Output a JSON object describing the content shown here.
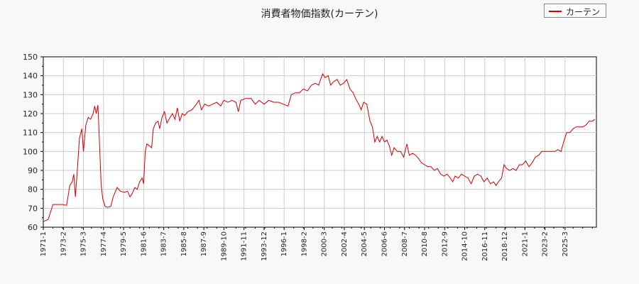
{
  "chart_data": {
    "type": "line",
    "title": "消費者物価指数(カーテン)",
    "xlabel": "",
    "ylabel": "",
    "ylim": [
      60,
      150
    ],
    "yticks": [
      60,
      70,
      80,
      90,
      100,
      110,
      120,
      130,
      140,
      150
    ],
    "grid": true,
    "legend_position": "top-right",
    "x_tick_labels": [
      "1971-1",
      "1973-2",
      "1975-3",
      "1977-4",
      "1979-5",
      "1981-6",
      "1983-7",
      "1985-8",
      "1987-9",
      "1989-10",
      "1991-11",
      "1993-12",
      "1996-1",
      "1998-2",
      "2000-3",
      "2002-4",
      "2004-5",
      "2006-6",
      "2008-7",
      "2010-8",
      "2012-9",
      "2014-10",
      "2016-11",
      "2018-12",
      "2021-1",
      "2023-2",
      "2025-3"
    ],
    "series": [
      {
        "name": "カーテン",
        "color": "#d00000",
        "points": [
          [
            "1971-01",
            63
          ],
          [
            "1971-07",
            64
          ],
          [
            "1972-01",
            72
          ],
          [
            "1972-07",
            72
          ],
          [
            "1973-01",
            72
          ],
          [
            "1973-06",
            71.5
          ],
          [
            "1973-10",
            82
          ],
          [
            "1974-01",
            84
          ],
          [
            "1974-03",
            88
          ],
          [
            "1974-05",
            76
          ],
          [
            "1974-07",
            88
          ],
          [
            "1974-10",
            107
          ],
          [
            "1975-01",
            112
          ],
          [
            "1975-03",
            100
          ],
          [
            "1975-06",
            114
          ],
          [
            "1975-09",
            118
          ],
          [
            "1975-12",
            117
          ],
          [
            "1976-03",
            120
          ],
          [
            "1976-05",
            124
          ],
          [
            "1976-07",
            120
          ],
          [
            "1976-09",
            124.5
          ],
          [
            "1976-11",
            105
          ],
          [
            "1977-01",
            83
          ],
          [
            "1977-03",
            75
          ],
          [
            "1977-06",
            71
          ],
          [
            "1977-09",
            70.5
          ],
          [
            "1978-01",
            71
          ],
          [
            "1978-04",
            76
          ],
          [
            "1978-07",
            79
          ],
          [
            "1978-09",
            81
          ],
          [
            "1979-01",
            79
          ],
          [
            "1979-06",
            78.5
          ],
          [
            "1979-10",
            79
          ],
          [
            "1980-01",
            76
          ],
          [
            "1980-04",
            78
          ],
          [
            "1980-07",
            81
          ],
          [
            "1980-10",
            80
          ],
          [
            "1981-01",
            84
          ],
          [
            "1981-04",
            86
          ],
          [
            "1981-06",
            83
          ],
          [
            "1981-08",
            100
          ],
          [
            "1981-10",
            104
          ],
          [
            "1982-01",
            103
          ],
          [
            "1982-04",
            102
          ],
          [
            "1982-06",
            112
          ],
          [
            "1982-09",
            115
          ],
          [
            "1982-12",
            116
          ],
          [
            "1983-02",
            112
          ],
          [
            "1983-05",
            118
          ],
          [
            "1983-08",
            121
          ],
          [
            "1983-11",
            115
          ],
          [
            "1984-03",
            118
          ],
          [
            "1984-06",
            120
          ],
          [
            "1984-09",
            117
          ],
          [
            "1984-12",
            123
          ],
          [
            "1985-03",
            116
          ],
          [
            "1985-06",
            120
          ],
          [
            "1985-09",
            119
          ],
          [
            "1986-01",
            121
          ],
          [
            "1986-06",
            122
          ],
          [
            "1986-10",
            124
          ],
          [
            "1987-03",
            127
          ],
          [
            "1987-06",
            122
          ],
          [
            "1987-10",
            125
          ],
          [
            "1988-03",
            124
          ],
          [
            "1988-08",
            125
          ],
          [
            "1989-01",
            126
          ],
          [
            "1989-06",
            124
          ],
          [
            "1989-10",
            127
          ],
          [
            "1990-03",
            126
          ],
          [
            "1990-08",
            127
          ],
          [
            "1991-01",
            126
          ],
          [
            "1991-04",
            121
          ],
          [
            "1991-07",
            127
          ],
          [
            "1992-01",
            128
          ],
          [
            "1992-08",
            128
          ],
          [
            "1993-01",
            125
          ],
          [
            "1993-06",
            127
          ],
          [
            "1993-12",
            125
          ],
          [
            "1994-06",
            127
          ],
          [
            "1994-12",
            126
          ],
          [
            "1995-06",
            126
          ],
          [
            "1995-12",
            125
          ],
          [
            "1996-06",
            124
          ],
          [
            "1996-10",
            130
          ],
          [
            "1997-03",
            131
          ],
          [
            "1997-08",
            131
          ],
          [
            "1998-01",
            133
          ],
          [
            "1998-06",
            132
          ],
          [
            "1998-11",
            135
          ],
          [
            "1999-04",
            136
          ],
          [
            "1999-08",
            135
          ],
          [
            "2000-01",
            141
          ],
          [
            "2000-04",
            139
          ],
          [
            "2000-08",
            140
          ],
          [
            "2000-11",
            135
          ],
          [
            "2001-03",
            137
          ],
          [
            "2001-07",
            138
          ],
          [
            "2001-11",
            135
          ],
          [
            "2002-03",
            136
          ],
          [
            "2002-07",
            138
          ],
          [
            "2002-11",
            133
          ],
          [
            "2003-03",
            131
          ],
          [
            "2003-06",
            128
          ],
          [
            "2003-10",
            125
          ],
          [
            "2004-01",
            122
          ],
          [
            "2004-04",
            126
          ],
          [
            "2004-08",
            125
          ],
          [
            "2004-12",
            116
          ],
          [
            "2005-03",
            113
          ],
          [
            "2005-06",
            105
          ],
          [
            "2005-09",
            108
          ],
          [
            "2005-12",
            105
          ],
          [
            "2006-03",
            108
          ],
          [
            "2006-06",
            105
          ],
          [
            "2006-09",
            106
          ],
          [
            "2006-12",
            103
          ],
          [
            "2007-03",
            98
          ],
          [
            "2007-06",
            102
          ],
          [
            "2007-10",
            100
          ],
          [
            "2008-02",
            100
          ],
          [
            "2008-06",
            97
          ],
          [
            "2008-10",
            104
          ],
          [
            "2009-01",
            98
          ],
          [
            "2009-05",
            99
          ],
          [
            "2009-09",
            98
          ],
          [
            "2010-01",
            96
          ],
          [
            "2010-04",
            94
          ],
          [
            "2010-08",
            93
          ],
          [
            "2010-12",
            92
          ],
          [
            "2011-04",
            92
          ],
          [
            "2011-08",
            90
          ],
          [
            "2011-12",
            91
          ],
          [
            "2012-04",
            88
          ],
          [
            "2012-08",
            87
          ],
          [
            "2012-12",
            88
          ],
          [
            "2013-04",
            86
          ],
          [
            "2013-07",
            84
          ],
          [
            "2013-10",
            87
          ],
          [
            "2014-02",
            86
          ],
          [
            "2014-06",
            88
          ],
          [
            "2014-10",
            87
          ],
          [
            "2015-02",
            86
          ],
          [
            "2015-06",
            83
          ],
          [
            "2015-10",
            87
          ],
          [
            "2016-02",
            88
          ],
          [
            "2016-06",
            87
          ],
          [
            "2016-10",
            84
          ],
          [
            "2017-02",
            86
          ],
          [
            "2017-06",
            83
          ],
          [
            "2017-10",
            84
          ],
          [
            "2018-01",
            82
          ],
          [
            "2018-04",
            84
          ],
          [
            "2018-08",
            86
          ],
          [
            "2018-11",
            93
          ],
          [
            "2019-02",
            91
          ],
          [
            "2019-06",
            90
          ],
          [
            "2019-10",
            91
          ],
          [
            "2020-02",
            90
          ],
          [
            "2020-06",
            93
          ],
          [
            "2020-10",
            93
          ],
          [
            "2021-02",
            95
          ],
          [
            "2021-06",
            92
          ],
          [
            "2021-10",
            94
          ],
          [
            "2022-02",
            97
          ],
          [
            "2022-06",
            98
          ],
          [
            "2022-10",
            100
          ],
          [
            "2023-02",
            100
          ],
          [
            "2023-06",
            100
          ],
          [
            "2023-10",
            100
          ],
          [
            "2024-02",
            100
          ],
          [
            "2024-06",
            101
          ],
          [
            "2024-10",
            100
          ],
          [
            "2025-02",
            106
          ],
          [
            "2025-05",
            110
          ],
          [
            "2025-09",
            110
          ],
          [
            "2026-01",
            112
          ],
          [
            "2026-05",
            113
          ],
          [
            "2026-09",
            113
          ],
          [
            "2027-01",
            113
          ],
          [
            "2027-05",
            114
          ],
          [
            "2027-09",
            116
          ],
          [
            "2028-01",
            116
          ],
          [
            "2028-04",
            117
          ]
        ]
      }
    ]
  }
}
